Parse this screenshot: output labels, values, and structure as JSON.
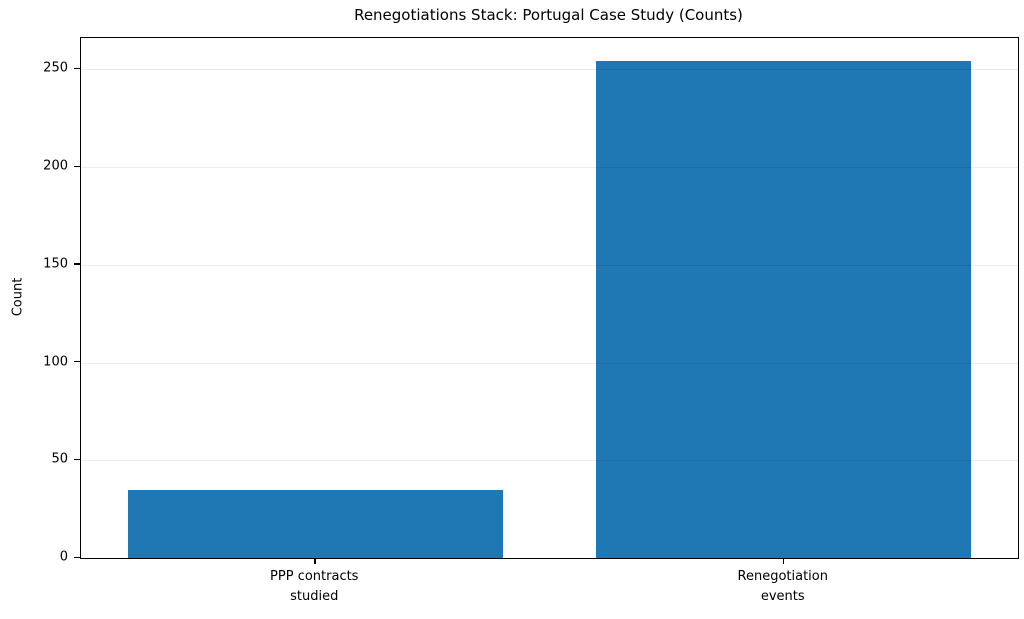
{
  "chart_data": {
    "type": "bar",
    "title": "Renegotiations Stack: Portugal Case Study (Counts)",
    "ylabel": "Count",
    "categories": [
      "PPP contracts\nstudied",
      "Renegotiation\nevents"
    ],
    "values": [
      35,
      254
    ],
    "yticks": [
      0,
      50,
      100,
      150,
      200,
      250
    ],
    "ylim": [
      0,
      266
    ],
    "bar_color": "#1f77b4",
    "bar_width_fraction": 0.8,
    "grid": "horizontal",
    "gridline_color": "rgba(0,0,0,0.08)",
    "legend_position": "none"
  }
}
